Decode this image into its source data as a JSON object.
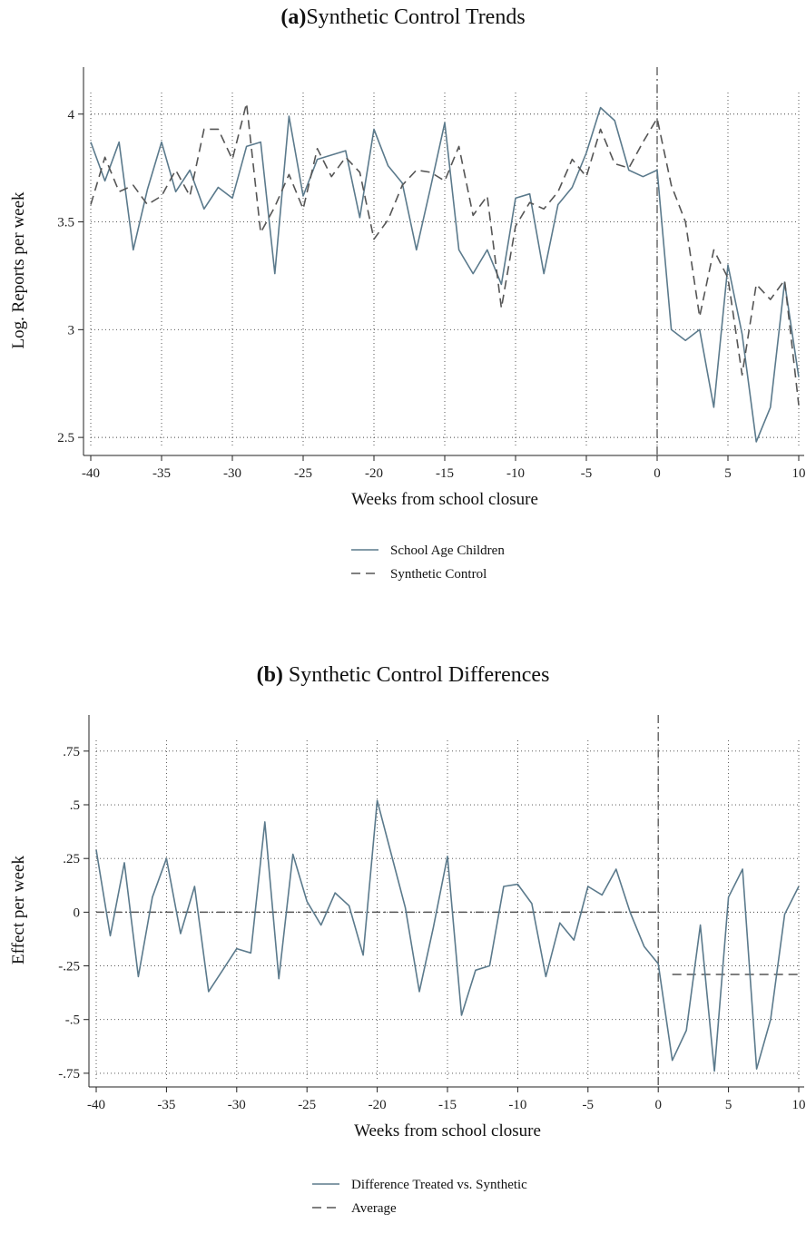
{
  "chart_data": [
    {
      "type": "line",
      "panel_letter": "(a)",
      "title": "Synthetic Control Trends",
      "xlabel": "Weeks from school closure",
      "ylabel": "Log. Reports per week",
      "xlim": [
        -40,
        10
      ],
      "ylim": [
        2.45,
        4.1
      ],
      "xticks": [
        -40,
        -35,
        -30,
        -25,
        -20,
        -15,
        -10,
        -5,
        0,
        5,
        10
      ],
      "xtick_labels": [
        "-40",
        "-35",
        "-30",
        "-25",
        "-20",
        "-15",
        "-10",
        "-5",
        "0",
        "5",
        "10"
      ],
      "yticks": [
        2.5,
        3,
        3.5,
        4
      ],
      "ytick_labels": [
        "2.5",
        "3",
        "3.5",
        "4"
      ],
      "grid": true,
      "vline_x": 0,
      "legend_position": "bottom",
      "x": [
        -40,
        -39,
        -38,
        -37,
        -36,
        -35,
        -34,
        -33,
        -32,
        -31,
        -30,
        -29,
        -28,
        -27,
        -26,
        -25,
        -24,
        -23,
        -22,
        -21,
        -20,
        -19,
        -18,
        -17,
        -16,
        -15,
        -14,
        -13,
        -12,
        -11,
        -10,
        -9,
        -8,
        -7,
        -6,
        -5,
        -4,
        -3,
        -2,
        -1,
        0,
        1,
        2,
        3,
        4,
        5,
        6,
        7,
        8,
        9,
        10
      ],
      "series": [
        {
          "name": "School Age Children",
          "color": "#5b7a8c",
          "dash": "solid",
          "values": [
            3.87,
            3.69,
            3.87,
            3.37,
            3.65,
            3.87,
            3.64,
            3.74,
            3.56,
            3.66,
            3.61,
            3.85,
            3.87,
            3.26,
            3.99,
            3.62,
            3.79,
            3.81,
            3.83,
            3.52,
            3.93,
            3.76,
            3.68,
            3.37,
            3.66,
            3.96,
            3.37,
            3.26,
            3.37,
            3.21,
            3.61,
            3.63,
            3.26,
            3.58,
            3.66,
            3.82,
            4.03,
            3.97,
            3.74,
            3.71,
            3.74,
            3.0,
            2.95,
            3.0,
            2.64,
            3.3,
            2.98,
            2.48,
            2.64,
            3.22,
            2.78
          ]
        },
        {
          "name": "Synthetic Control",
          "color": "#555555",
          "dash": "dashed",
          "values": [
            3.58,
            3.8,
            3.64,
            3.67,
            3.58,
            3.62,
            3.74,
            3.62,
            3.93,
            3.93,
            3.79,
            4.05,
            3.45,
            3.57,
            3.72,
            3.56,
            3.84,
            3.71,
            3.8,
            3.73,
            3.42,
            3.51,
            3.67,
            3.74,
            3.73,
            3.69,
            3.85,
            3.53,
            3.62,
            3.1,
            3.48,
            3.59,
            3.56,
            3.64,
            3.79,
            3.71,
            3.93,
            3.77,
            3.75,
            3.87,
            3.98,
            3.67,
            3.5,
            3.06,
            3.37,
            3.24,
            2.79,
            3.21,
            3.14,
            3.23,
            2.65
          ]
        }
      ]
    },
    {
      "type": "line",
      "panel_letter": "(b)",
      "title": "Synthetic Control Differences",
      "xlabel": "Weeks from school closure",
      "ylabel": "Effect per week",
      "xlim": [
        -40,
        10
      ],
      "ylim": [
        -0.78,
        0.8
      ],
      "xticks": [
        -40,
        -35,
        -30,
        -25,
        -20,
        -15,
        -10,
        -5,
        0,
        5,
        10
      ],
      "xtick_labels": [
        "-40",
        "-35",
        "-30",
        "-25",
        "-20",
        "-15",
        "-10",
        "-5",
        "0",
        "5",
        "10"
      ],
      "yticks": [
        -0.75,
        -0.5,
        -0.25,
        0,
        0.25,
        0.5,
        0.75
      ],
      "ytick_labels": [
        "-.75",
        "-.5",
        "-.25",
        "0",
        ".25",
        ".5",
        ".75"
      ],
      "grid": true,
      "vline_x": 0,
      "legend_position": "bottom",
      "x": [
        -40,
        -39,
        -38,
        -37,
        -36,
        -35,
        -34,
        -33,
        -32,
        -31,
        -30,
        -29,
        -28,
        -27,
        -26,
        -25,
        -24,
        -23,
        -22,
        -21,
        -20,
        -19,
        -18,
        -17,
        -16,
        -15,
        -14,
        -13,
        -12,
        -11,
        -10,
        -9,
        -8,
        -7,
        -6,
        -5,
        -4,
        -3,
        -2,
        -1,
        0,
        1,
        2,
        3,
        4,
        5,
        6,
        7,
        8,
        9,
        10
      ],
      "series": [
        {
          "name": "Difference Treated vs. Synthetic",
          "color": "#5b7a8c",
          "dash": "solid",
          "values": [
            0.29,
            -0.11,
            0.23,
            -0.3,
            0.07,
            0.25,
            -0.1,
            0.12,
            -0.37,
            -0.27,
            -0.17,
            -0.19,
            0.42,
            -0.31,
            0.27,
            0.05,
            -0.06,
            0.09,
            0.03,
            -0.2,
            0.52,
            0.27,
            0.02,
            -0.37,
            -0.07,
            0.26,
            -0.48,
            -0.27,
            -0.25,
            0.12,
            0.13,
            0.04,
            -0.3,
            -0.05,
            -0.13,
            0.12,
            0.08,
            0.2,
            0.0,
            -0.16,
            -0.24,
            -0.69,
            -0.55,
            -0.06,
            -0.74,
            0.07,
            0.2,
            -0.73,
            -0.5,
            -0.01,
            0.12
          ]
        }
      ],
      "reference_lines": [
        {
          "name": "Average",
          "color": "#555555",
          "dash": "dashed",
          "x_from": 1,
          "x_to": 10,
          "y": -0.29
        },
        {
          "name": "",
          "color": "#555555",
          "dash": "dashdot",
          "x_from": -40,
          "x_to": 0,
          "y": 0
        }
      ]
    }
  ]
}
